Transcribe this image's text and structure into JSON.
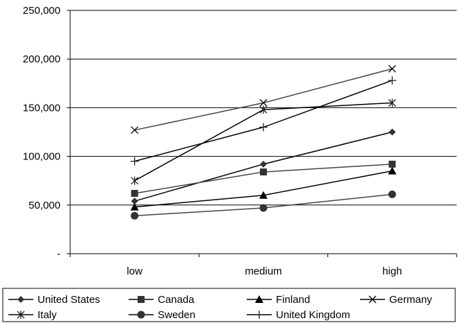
{
  "chart_data": {
    "type": "line",
    "categories": [
      "low",
      "medium",
      "high"
    ],
    "ylim": [
      0,
      250000
    ],
    "y_ticks": [
      0,
      50000,
      100000,
      150000,
      200000,
      250000
    ],
    "y_tick_labels": [
      "-",
      "50,000",
      "100,000",
      "150,000",
      "200,000",
      "250,000"
    ],
    "grid": "horizontal",
    "legend_position": "bottom",
    "series": [
      {
        "name": "United States",
        "values": [
          54000,
          92000,
          125000
        ],
        "marker": "diamond"
      },
      {
        "name": "Canada",
        "values": [
          62000,
          84000,
          92000
        ],
        "marker": "square"
      },
      {
        "name": "Finland",
        "values": [
          48000,
          60000,
          85000
        ],
        "marker": "triangle"
      },
      {
        "name": "Germany",
        "values": [
          127000,
          155000,
          190000
        ],
        "marker": "x"
      },
      {
        "name": "Italy",
        "values": [
          75000,
          148000,
          155000
        ],
        "marker": "asterisk"
      },
      {
        "name": "Sweden",
        "values": [
          39000,
          47000,
          61000
        ],
        "marker": "circle"
      },
      {
        "name": "United Kingdom",
        "values": [
          95000,
          130000,
          178000
        ],
        "marker": "plus"
      }
    ],
    "colors": {
      "line": "#000000",
      "grid": "#000000",
      "marker": "#333333"
    }
  }
}
